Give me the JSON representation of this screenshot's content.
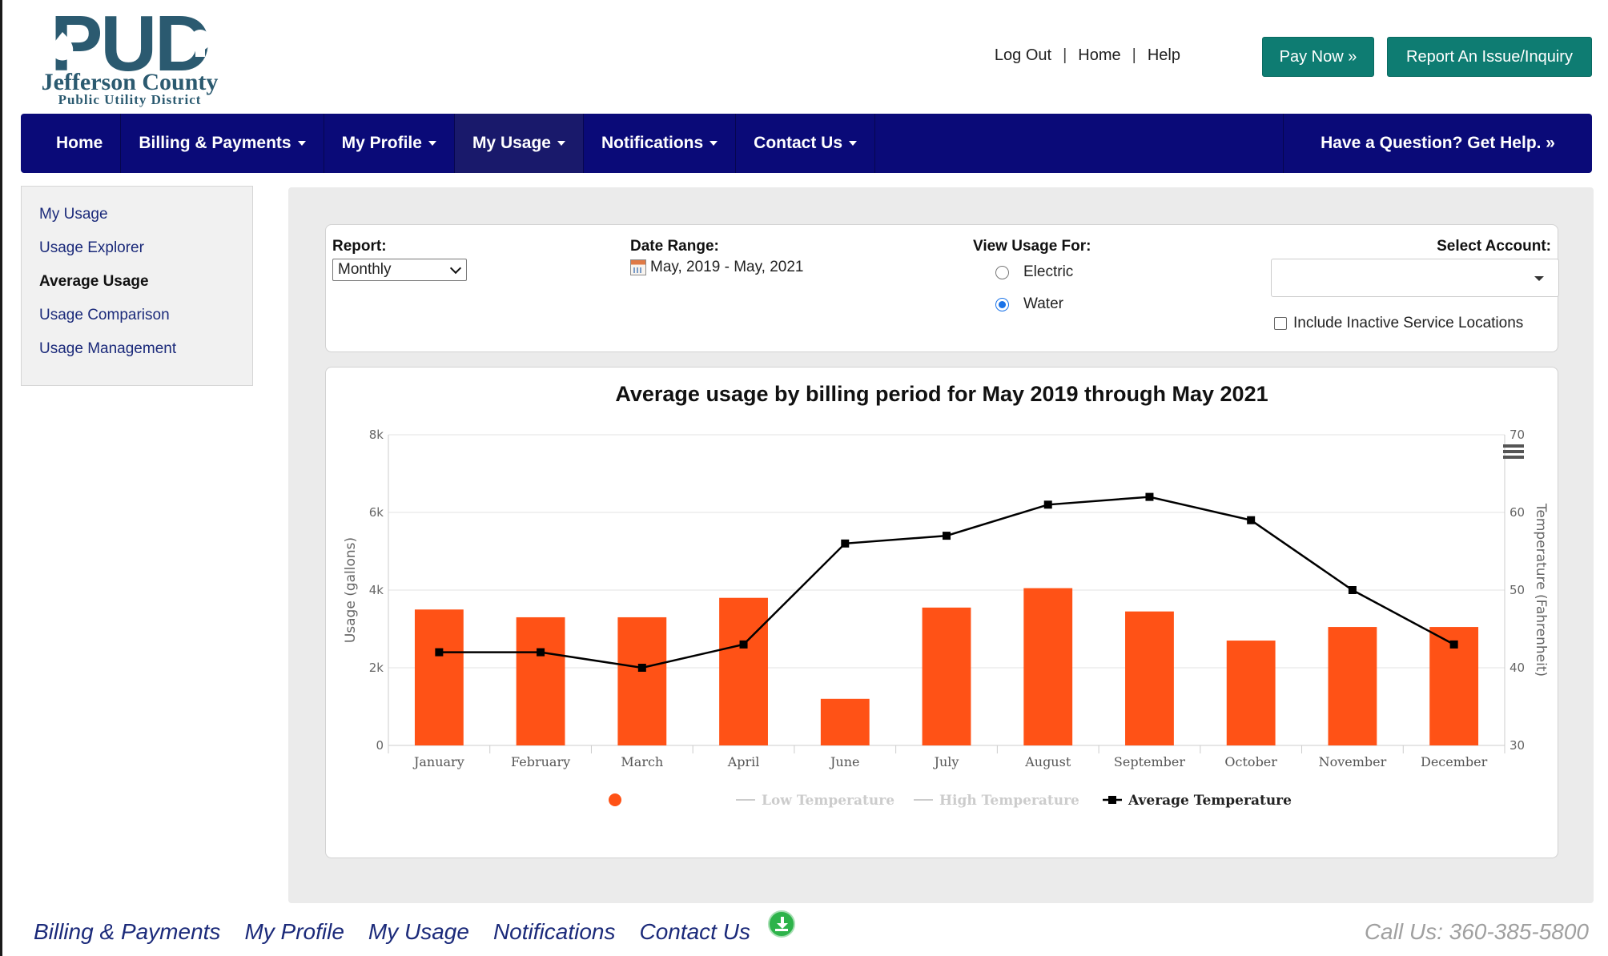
{
  "header": {
    "logo": {
      "big": "PUD",
      "line1": "Jefferson County",
      "line2": "Public Utility District"
    },
    "links": [
      "Log Out",
      "Home",
      "Help"
    ],
    "pay_now": "Pay Now »",
    "report_issue": "Report An Issue/Inquiry",
    "brand_color": "#2b5a70",
    "accent_color": "#0e7c72"
  },
  "nav": {
    "items": [
      {
        "label": "Home",
        "dropdown": false
      },
      {
        "label": "Billing & Payments",
        "dropdown": true
      },
      {
        "label": "My Profile",
        "dropdown": true
      },
      {
        "label": "My Usage",
        "dropdown": true,
        "active": true
      },
      {
        "label": "Notifications",
        "dropdown": true
      },
      {
        "label": "Contact Us",
        "dropdown": true
      }
    ],
    "help": "Have a Question? Get Help. »",
    "color": "#0a0a78"
  },
  "sidebar": {
    "items": [
      "My Usage",
      "Usage Explorer",
      "Average Usage",
      "Usage Comparison",
      "Usage Management"
    ],
    "active": "Average Usage"
  },
  "filters": {
    "report_label": "Report:",
    "report_value": "Monthly",
    "date_label": "Date Range:",
    "date_value": "May, 2019 - May, 2021",
    "view_label": "View Usage For:",
    "view_options": [
      "Electric",
      "Water"
    ],
    "view_selected": "Water",
    "account_label": "Select Account:",
    "account_value": "",
    "include_inactive": "Include Inactive Service Locations",
    "include_inactive_checked": false
  },
  "chart_data": {
    "type": "bar",
    "title": "Average usage by billing period for May 2019 through May 2021",
    "categories": [
      "January",
      "February",
      "March",
      "April",
      "June",
      "July",
      "August",
      "September",
      "October",
      "November",
      "December"
    ],
    "series": [
      {
        "axis": "left",
        "kind": "bar",
        "color": "#ff5216",
        "values": [
          3500,
          3300,
          3300,
          3800,
          1200,
          3550,
          4050,
          3450,
          2700,
          3050,
          3050
        ]
      },
      {
        "name": "Low Temperature",
        "axis": "right",
        "kind": "line",
        "visible": false
      },
      {
        "name": "High Temperature",
        "axis": "right",
        "kind": "line",
        "visible": false
      },
      {
        "name": "Average Temperature",
        "axis": "right",
        "kind": "line",
        "color": "#000000",
        "values": [
          42,
          42,
          40,
          43,
          56,
          57,
          61,
          62,
          59,
          50,
          43
        ]
      }
    ],
    "ylabel": "Usage (gallons)",
    "ylim": [
      0,
      8000
    ],
    "yticks": [
      "0",
      "2k",
      "4k",
      "6k",
      "8k"
    ],
    "y2label": "Temperature (Fahrenheit)",
    "y2lim": [
      30,
      70
    ],
    "y2ticks": [
      "30",
      "40",
      "50",
      "60",
      "70"
    ],
    "grid": true,
    "legend_position": "bottom"
  },
  "footer": {
    "links": [
      "Billing & Payments",
      "My Profile",
      "My Usage",
      "Notifications",
      "Contact Us"
    ],
    "call": "Call Us: 360-385-5800"
  }
}
